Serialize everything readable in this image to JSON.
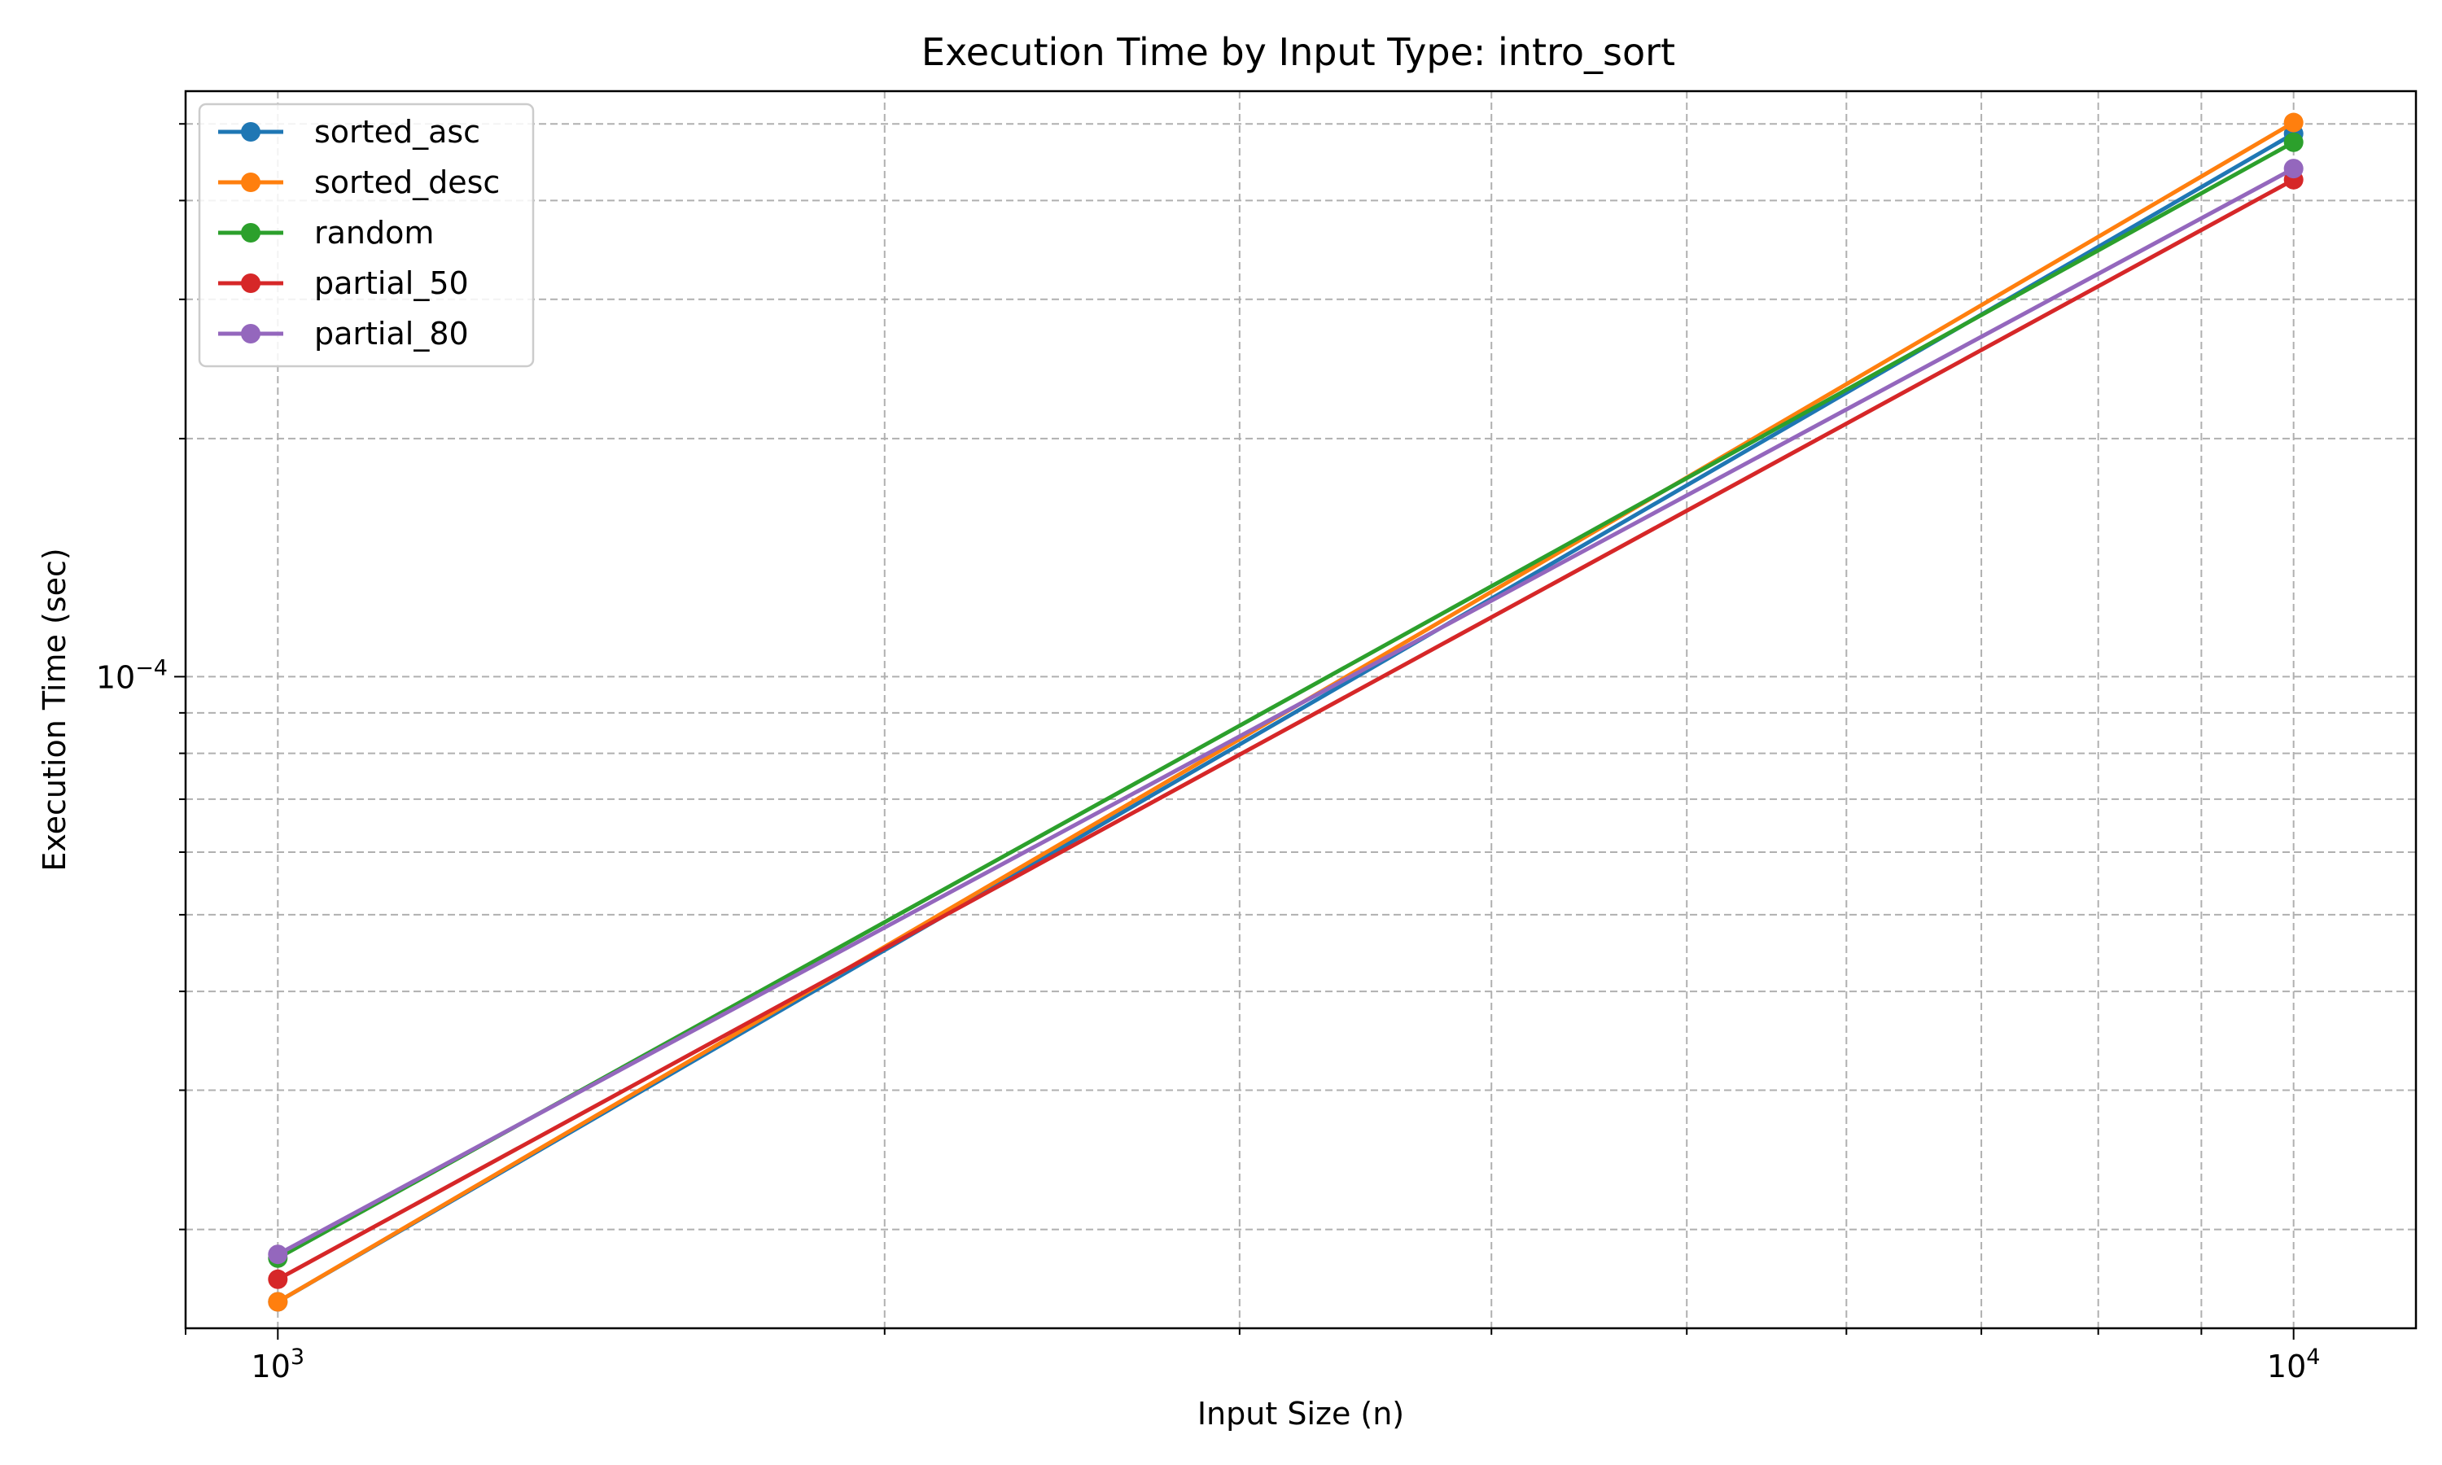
{
  "chart_data": {
    "type": "line",
    "title": "Execution Time by Input Type: intro_sort",
    "xlabel": "Input Size (n)",
    "ylabel": "Execution Time (sec)",
    "x_scale": "log",
    "y_scale": "log",
    "xlim": [
      900,
      11500
    ],
    "ylim": [
      1.5e-05,
      0.00055
    ],
    "x_ticks": [
      {
        "value": 1000,
        "base": "10",
        "exp": "3"
      },
      {
        "value": 10000,
        "base": "10",
        "exp": "4"
      }
    ],
    "y_ticks": [
      {
        "value": 0.0001,
        "base": "10",
        "exp": "−4"
      }
    ],
    "grid": true,
    "legend_position": "top-left",
    "x": [
      1000,
      10000
    ],
    "series": [
      {
        "name": "sorted_asc",
        "color": "#1f77b4",
        "values": [
          1.62e-05,
          0.000486
        ]
      },
      {
        "name": "sorted_desc",
        "color": "#ff7f0e",
        "values": [
          1.62e-05,
          0.000502
        ]
      },
      {
        "name": "random",
        "color": "#2ca02c",
        "values": [
          1.84e-05,
          0.000474
        ]
      },
      {
        "name": "partial_50",
        "color": "#d62728",
        "values": [
          1.73e-05,
          0.000425
        ]
      },
      {
        "name": "partial_80",
        "color": "#9467bd",
        "values": [
          1.86e-05,
          0.000439
        ]
      }
    ]
  }
}
